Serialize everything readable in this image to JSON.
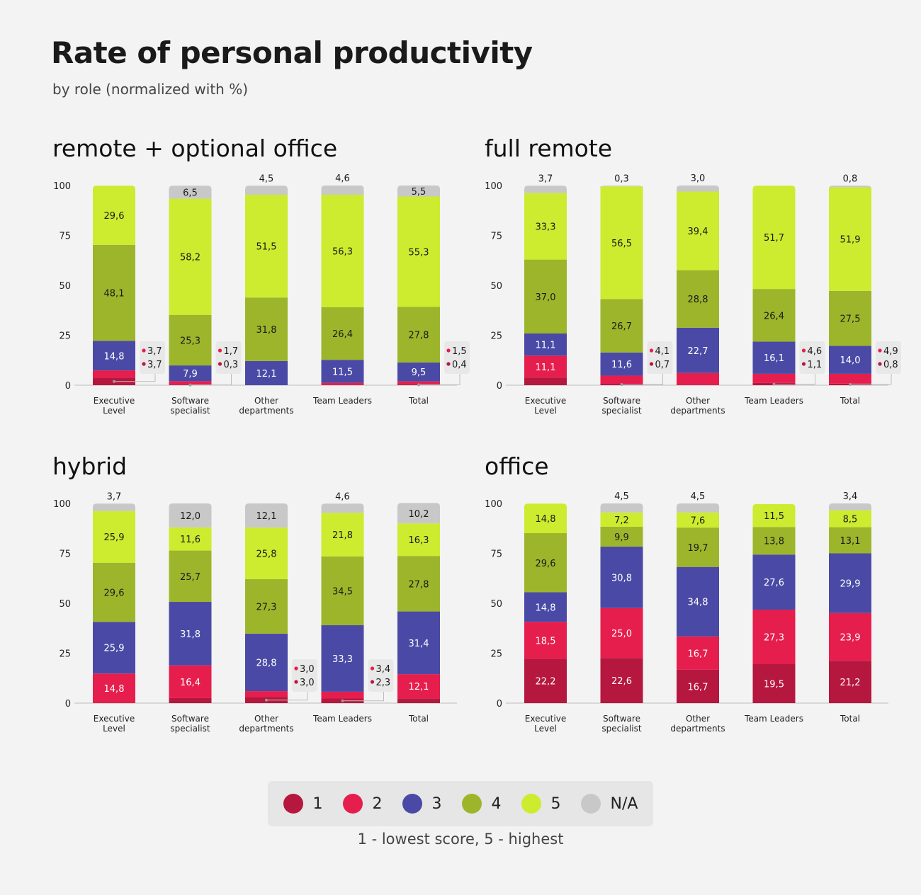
{
  "title": "Rate of personal productivity",
  "subtitle": "by role (normalized with %)",
  "legend": {
    "items": [
      {
        "label": "1",
        "color": "#b5173f"
      },
      {
        "label": "2",
        "color": "#e61e4d"
      },
      {
        "label": "3",
        "color": "#4a4aa6"
      },
      {
        "label": "4",
        "color": "#9db52a"
      },
      {
        "label": "5",
        "color": "#cdeb2f"
      },
      {
        "label": "N/A",
        "color": "#c8c8c8"
      }
    ],
    "note": "1 - lowest score, 5 - highest"
  },
  "chart_data": [
    {
      "type": "bar",
      "stacked": true,
      "title": "remote + optional office",
      "categories": [
        "Executive Level",
        "Software specialist",
        "Other departments",
        "Team Leaders",
        "Total"
      ],
      "ylim": [
        0,
        100
      ],
      "yticks": [
        0,
        25,
        50,
        75,
        100
      ],
      "series": [
        {
          "name": "1",
          "values": [
            3.7,
            0.3,
            0,
            0,
            0.4
          ],
          "labels": [
            "3,7",
            "0,3",
            "",
            "",
            "0,4"
          ]
        },
        {
          "name": "2",
          "values": [
            3.7,
            1.7,
            0,
            1.2,
            1.5
          ],
          "labels": [
            "3,7",
            "1,7",
            "",
            "",
            "1,5"
          ]
        },
        {
          "name": "3",
          "values": [
            14.8,
            7.9,
            12.1,
            11.5,
            9.5
          ],
          "labels": [
            "14,8",
            "7,9",
            "12,1",
            "11,5",
            "9,5"
          ]
        },
        {
          "name": "4",
          "values": [
            48.1,
            25.3,
            31.8,
            26.4,
            27.8
          ],
          "labels": [
            "48,1",
            "25,3",
            "31,8",
            "26,4",
            "27,8"
          ]
        },
        {
          "name": "5",
          "values": [
            29.6,
            58.2,
            51.5,
            56.3,
            55.3
          ],
          "labels": [
            "29,6",
            "58,2",
            "51,5",
            "56,3",
            "55,3"
          ]
        },
        {
          "name": "N/A",
          "values": [
            0,
            6.5,
            4.5,
            4.6,
            5.5
          ],
          "labels": [
            "",
            "6,5",
            "4,5",
            "4,6",
            "5,5"
          ]
        }
      ]
    },
    {
      "type": "bar",
      "stacked": true,
      "title": "full remote",
      "categories": [
        "Executive Level",
        "Software specialist",
        "Other departments",
        "Team Leaders",
        "Total"
      ],
      "ylim": [
        0,
        100
      ],
      "yticks": [
        0,
        25,
        50,
        75,
        100
      ],
      "series": [
        {
          "name": "1",
          "values": [
            3.7,
            0.7,
            0,
            1.1,
            0.8
          ],
          "labels": [
            "",
            "0,7",
            "",
            "1,1",
            "0,8"
          ]
        },
        {
          "name": "2",
          "values": [
            11.1,
            4.1,
            6.1,
            4.6,
            4.9
          ],
          "labels": [
            "11,1",
            "4,1",
            "",
            "4,6",
            "4,9"
          ]
        },
        {
          "name": "3",
          "values": [
            11.1,
            11.6,
            22.7,
            16.1,
            14.0
          ],
          "labels": [
            "11,1",
            "11,6",
            "22,7",
            "16,1",
            "14,0"
          ]
        },
        {
          "name": "4",
          "values": [
            37.0,
            26.7,
            28.8,
            26.4,
            27.5
          ],
          "labels": [
            "37,0",
            "26,7",
            "28,8",
            "26,4",
            "27,5"
          ]
        },
        {
          "name": "5",
          "values": [
            33.3,
            56.5,
            39.4,
            51.7,
            51.9
          ],
          "labels": [
            "33,3",
            "56,5",
            "39,4",
            "51,7",
            "51,9"
          ]
        },
        {
          "name": "N/A",
          "values": [
            3.7,
            0.3,
            3.0,
            0,
            0.8
          ],
          "labels": [
            "3,7",
            "0,3",
            "3,0",
            "",
            "0,8"
          ]
        }
      ]
    },
    {
      "type": "bar",
      "stacked": true,
      "title": "hybrid",
      "categories": [
        "Executive Level",
        "Software specialist",
        "Other departments",
        "Team Leaders",
        "Total"
      ],
      "ylim": [
        0,
        100
      ],
      "yticks": [
        0,
        25,
        50,
        75,
        100
      ],
      "series": [
        {
          "name": "1",
          "values": [
            0,
            2.5,
            3.0,
            2.3,
            2.4
          ],
          "labels": [
            "",
            "",
            "3,0",
            "2,3",
            ""
          ]
        },
        {
          "name": "2",
          "values": [
            14.8,
            16.4,
            3.0,
            3.4,
            12.1
          ],
          "labels": [
            "14,8",
            "16,4",
            "3,0",
            "3,4",
            "12,1"
          ]
        },
        {
          "name": "3",
          "values": [
            25.9,
            31.8,
            28.8,
            33.3,
            31.4
          ],
          "labels": [
            "25,9",
            "31,8",
            "28,8",
            "33,3",
            "31,4"
          ]
        },
        {
          "name": "4",
          "values": [
            29.6,
            25.7,
            27.3,
            34.5,
            27.8
          ],
          "labels": [
            "29,6",
            "25,7",
            "27,3",
            "34,5",
            "27,8"
          ]
        },
        {
          "name": "5",
          "values": [
            25.9,
            11.6,
            25.8,
            21.8,
            16.3
          ],
          "labels": [
            "25,9",
            "11,6",
            "25,8",
            "21,8",
            "16,3"
          ]
        },
        {
          "name": "N/A",
          "values": [
            3.7,
            12.0,
            12.1,
            4.6,
            10.2
          ],
          "labels": [
            "3,7",
            "12,0",
            "12,1",
            "4,6",
            "10,2"
          ]
        }
      ]
    },
    {
      "type": "bar",
      "stacked": true,
      "title": "office",
      "categories": [
        "Executive Level",
        "Software specialist",
        "Other departments",
        "Team Leaders",
        "Total"
      ],
      "ylim": [
        0,
        100
      ],
      "yticks": [
        0,
        25,
        50,
        75,
        100
      ],
      "series": [
        {
          "name": "1",
          "values": [
            22.2,
            22.6,
            16.7,
            19.5,
            21.2
          ],
          "labels": [
            "22,2",
            "22,6",
            "16,7",
            "19,5",
            "21,2"
          ]
        },
        {
          "name": "2",
          "values": [
            18.5,
            25.0,
            16.7,
            27.3,
            23.9
          ],
          "labels": [
            "18,5",
            "25,0",
            "16,7",
            "27,3",
            "23,9"
          ]
        },
        {
          "name": "3",
          "values": [
            14.8,
            30.8,
            34.8,
            27.6,
            29.9
          ],
          "labels": [
            "14,8",
            "30,8",
            "34,8",
            "27,6",
            "29,9"
          ]
        },
        {
          "name": "4",
          "values": [
            29.6,
            9.9,
            19.7,
            13.8,
            13.1
          ],
          "labels": [
            "29,6",
            "9,9",
            "19,7",
            "13,8",
            "13,1"
          ]
        },
        {
          "name": "5",
          "values": [
            14.8,
            7.2,
            7.6,
            11.5,
            8.5
          ],
          "labels": [
            "14,8",
            "7,2",
            "7,6",
            "11,5",
            "8,5"
          ]
        },
        {
          "name": "N/A",
          "values": [
            0,
            4.5,
            4.5,
            0,
            3.4
          ],
          "labels": [
            "",
            "4,5",
            "4,5",
            "",
            "3,4"
          ]
        }
      ]
    }
  ]
}
